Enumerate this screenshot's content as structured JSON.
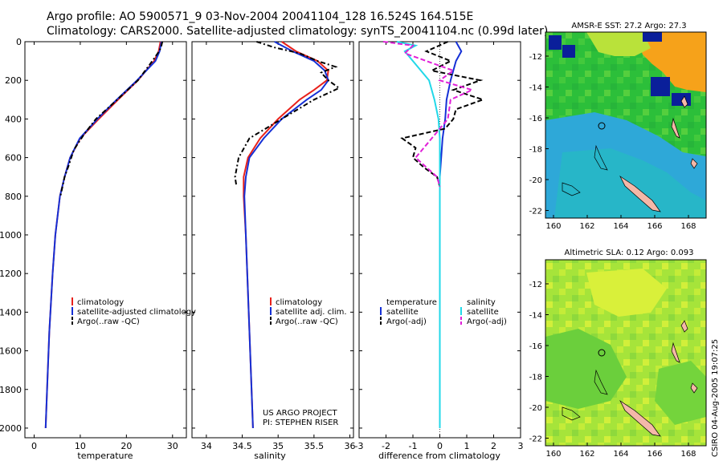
{
  "header": {
    "line1": "Argo profile: AO 5900571_9 03-Nov-2004 20041104_128 16.524S 164.515E",
    "line2": "Climatology: CARS2000. Satellite-adjusted climatology: synTS_20041104.nc (0.99d later)"
  },
  "colors": {
    "climatology": "#e8211b",
    "satellite": "#1530d6",
    "argo": "#000000",
    "sal_sat": "#22d8e8",
    "sal_argo": "#e020d8"
  },
  "credit": "CSIRO 04-Aug-2005 19:07:25",
  "chart_data": [
    {
      "type": "line",
      "id": "temperature",
      "xlabel": "temperature",
      "ylabel": "",
      "xlim": [
        -2,
        33
      ],
      "ylim": [
        2050,
        0
      ],
      "x_ticks": [
        0,
        10,
        20,
        30
      ],
      "y_ticks": [
        0,
        200,
        400,
        600,
        800,
        1000,
        1200,
        1400,
        1600,
        1800,
        2000
      ],
      "legend": [
        "climatology",
        "satellite-adjusted climatology",
        "Argo(..raw -QC)"
      ],
      "series": [
        {
          "name": "climatology",
          "depth": [
            0,
            50,
            100,
            200,
            300,
            400,
            450,
            500,
            600,
            700,
            800,
            1000,
            1200,
            1500,
            1800,
            2000
          ],
          "values": [
            27.4,
            27.0,
            26.0,
            22.5,
            18.2,
            14.0,
            12.0,
            10.0,
            7.8,
            6.6,
            5.6,
            4.6,
            4.0,
            3.3,
            2.8,
            2.5
          ]
        },
        {
          "name": "satellite-adjusted climatology",
          "depth": [
            0,
            50,
            100,
            200,
            300,
            400,
            450,
            500,
            600,
            700,
            800,
            1000,
            1200,
            1500,
            1800,
            2000
          ],
          "values": [
            27.6,
            27.2,
            26.3,
            22.3,
            17.9,
            13.7,
            11.8,
            9.9,
            7.8,
            6.6,
            5.6,
            4.6,
            4.0,
            3.3,
            2.8,
            2.5
          ]
        },
        {
          "name": "Argo(..raw -QC)",
          "depth": [
            0,
            30,
            60,
            120,
            200,
            300,
            400,
            480,
            560,
            640,
            700,
            800
          ],
          "values": [
            27.8,
            27.5,
            26.8,
            25.0,
            22.5,
            18.0,
            13.4,
            10.8,
            8.6,
            7.5,
            6.6,
            5.7
          ]
        }
      ]
    },
    {
      "type": "line",
      "id": "salinity",
      "xlabel": "salinity",
      "ylabel": "",
      "xlim": [
        33.8,
        36.05
      ],
      "ylim": [
        2050,
        0
      ],
      "x_ticks": [
        34,
        34.5,
        35,
        35.5,
        36
      ],
      "legend": [
        "climatology",
        "satellite adj. clim.",
        "Argo(..raw -QC)"
      ],
      "annotation": [
        "US ARGO PROJECT",
        "PI: STEPHEN RISER"
      ],
      "series": [
        {
          "name": "climatology",
          "depth": [
            0,
            50,
            100,
            150,
            200,
            250,
            300,
            400,
            500,
            600,
            700,
            800,
            1000,
            1200,
            1500,
            2000
          ],
          "values": [
            35.05,
            35.25,
            35.55,
            35.7,
            35.68,
            35.5,
            35.3,
            35.0,
            34.75,
            34.58,
            34.52,
            34.52,
            34.55,
            34.57,
            34.6,
            34.65
          ]
        },
        {
          "name": "satellite adj. clim.",
          "depth": [
            0,
            50,
            100,
            150,
            200,
            250,
            300,
            400,
            500,
            600,
            700,
            800,
            1000,
            1200,
            1500,
            2000
          ],
          "values": [
            34.95,
            35.2,
            35.5,
            35.65,
            35.7,
            35.6,
            35.4,
            35.05,
            34.8,
            34.6,
            34.55,
            34.53,
            34.55,
            34.57,
            34.6,
            34.65
          ]
        },
        {
          "name": "Argo(..raw -QC)",
          "depth": [
            0,
            30,
            60,
            100,
            130,
            160,
            200,
            240,
            300,
            400,
            500,
            600,
            700,
            750
          ],
          "values": [
            34.7,
            34.95,
            35.3,
            35.55,
            35.8,
            35.6,
            35.7,
            35.85,
            35.5,
            35.05,
            34.6,
            34.45,
            34.4,
            34.42
          ]
        }
      ]
    },
    {
      "type": "line",
      "id": "difference",
      "xlabel": "difference from climatology",
      "ylabel": "",
      "xlim": [
        -3,
        3
      ],
      "ylim": [
        2050,
        0
      ],
      "x_ticks": [
        -3,
        -2,
        -1,
        0,
        1,
        2,
        3
      ],
      "legend_left": {
        "heading": "temperature",
        "items": [
          "satellite",
          "Argo(-adj)"
        ]
      },
      "legend_right": {
        "heading": "salinity",
        "items": [
          "satellite",
          "Argo(-adj)"
        ]
      },
      "series": [
        {
          "name": "temperature satellite",
          "depth": [
            0,
            50,
            100,
            200,
            300,
            400,
            500,
            700,
            1000,
            1500,
            2000
          ],
          "values": [
            0.6,
            0.8,
            0.6,
            0.4,
            0.25,
            0.2,
            0.1,
            0.0,
            0.0,
            0.0,
            0.0
          ]
        },
        {
          "name": "temperature Argo(-adj)",
          "depth": [
            0,
            50,
            100,
            150,
            200,
            250,
            300,
            350,
            400,
            450,
            500,
            550,
            600,
            650,
            700,
            750
          ],
          "values": [
            0.3,
            -0.5,
            0.4,
            -0.3,
            1.5,
            0.5,
            1.6,
            0.6,
            0.5,
            0.2,
            -1.4,
            -0.9,
            -1.0,
            -0.6,
            -0.1,
            0.0
          ]
        },
        {
          "name": "salinity satellite",
          "depth": [
            0,
            20,
            50,
            100,
            200,
            300,
            400,
            500,
            700,
            1000,
            1500,
            2000
          ],
          "values": [
            -1.6,
            -0.9,
            -1.3,
            -1.0,
            -0.4,
            -0.2,
            -0.05,
            0.0,
            0.0,
            0.0,
            0.0,
            0.0
          ]
        },
        {
          "name": "salinity Argo(-adj)",
          "depth": [
            0,
            20,
            60,
            100,
            150,
            200,
            250,
            300,
            400,
            500,
            600,
            700,
            750
          ],
          "values": [
            -2.1,
            -1.0,
            -1.3,
            -0.5,
            0.5,
            0.0,
            1.2,
            0.4,
            0.3,
            -0.3,
            -0.9,
            -0.1,
            0.0
          ]
        }
      ]
    },
    {
      "type": "heatmap",
      "id": "sst-map",
      "title": "AMSR-E SST: 27.2 Argo: 27.3",
      "x_ticks": [
        "160",
        "162",
        "164",
        "166",
        "168"
      ],
      "y_ticks": [
        "-12",
        "-14",
        "-16",
        "-18",
        "-20",
        "-22"
      ]
    },
    {
      "type": "heatmap",
      "id": "sla-map",
      "title": "Altimetric SLA: 0.12 Argo: 0.093",
      "x_ticks": [
        "160",
        "162",
        "164",
        "166",
        "168"
      ],
      "y_ticks": [
        "-12",
        "-14",
        "-16",
        "-18",
        "-20",
        "-22"
      ]
    }
  ]
}
